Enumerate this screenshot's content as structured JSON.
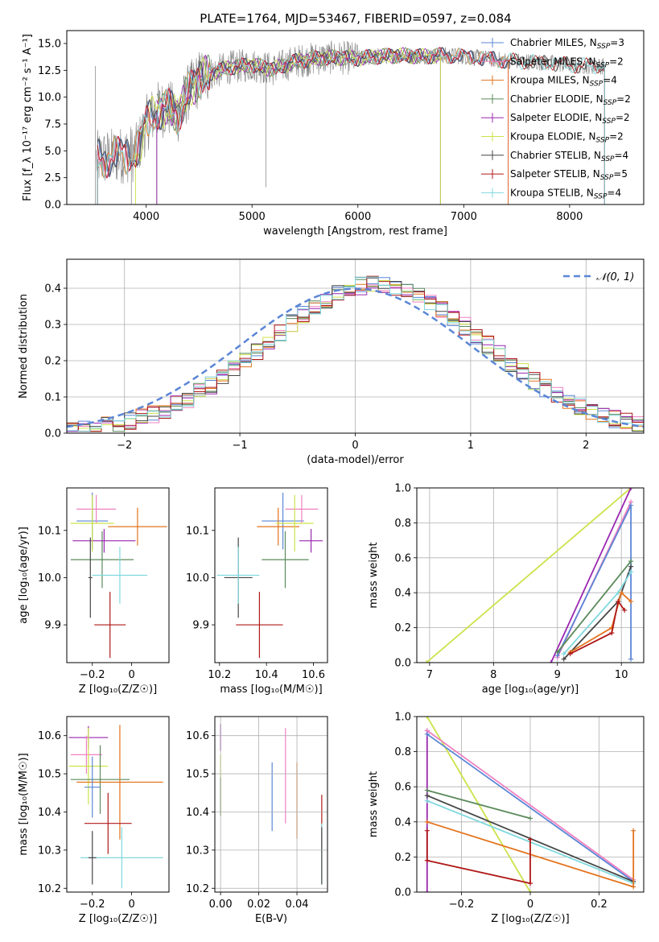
{
  "figure_title": "PLATE=1764, MJD=53467, FIBERID=0597, z=0.084",
  "colors": {
    "Chabrier MILES": "#5b86d6",
    "Salpeter MILES": "#f080c0",
    "Kroupa MILES": "#e3731d",
    "Chabrier ELODIE": "#5a8a5a",
    "Salpeter ELODIE": "#9b27b0",
    "Kroupa ELODIE": "#cde24a",
    "Chabrier STELIB": "#474747",
    "Salpeter STELIB": "#b01818",
    "Kroupa STELIB": "#7fd8de",
    "data": "#808080",
    "normal": "#5b86d6"
  },
  "chart_data": [
    {
      "id": "spectrum",
      "type": "line",
      "xlabel": "wavelength [Angstrom, rest frame]",
      "ylabel": "Flux [f_λ 10⁻¹⁷ erg cm⁻² s⁻¹ A⁻¹]",
      "xlim": [
        3250,
        8700
      ],
      "ylim": [
        0,
        16.2
      ],
      "xticks": [
        4000,
        5000,
        6000,
        7000,
        8000
      ],
      "yticks": [
        0.0,
        2.5,
        5.0,
        7.5,
        10.0,
        12.5,
        15.0
      ],
      "legend": [
        {
          "label": "Chabrier MILES, N_SSP=3",
          "color": "#5b86d6"
        },
        {
          "label": "Salpeter MILES, N_SSP=2",
          "color": "#f080c0"
        },
        {
          "label": "Kroupa MILES, N_SSP=4",
          "color": "#e3731d"
        },
        {
          "label": "Chabrier ELODIE, N_SSP=2",
          "color": "#5a8a5a"
        },
        {
          "label": "Salpeter ELODIE, N_SSP=2",
          "color": "#9b27b0"
        },
        {
          "label": "Kroupa ELODIE, N_SSP=2",
          "color": "#cde24a"
        },
        {
          "label": "Chabrier STELIB, N_SSP=4",
          "color": "#474747"
        },
        {
          "label": "Salpeter STELIB, N_SSP=5",
          "color": "#b01818"
        },
        {
          "label": "Kroupa STELIB, N_SSP=4",
          "color": "#7fd8de"
        }
      ],
      "legend_position": "upper right",
      "grid": false,
      "continuum": [
        [
          3530,
          4.2
        ],
        [
          3700,
          4.5
        ],
        [
          3900,
          4.8
        ],
        [
          3950,
          6.0
        ],
        [
          4000,
          7.5
        ],
        [
          4100,
          8.8
        ],
        [
          4200,
          9.0
        ],
        [
          4300,
          8.4
        ],
        [
          4400,
          10.5
        ],
        [
          4500,
          11.7
        ],
        [
          4600,
          12.2
        ],
        [
          4800,
          12.8
        ],
        [
          5000,
          13.0
        ],
        [
          5200,
          12.6
        ],
        [
          5400,
          13.3
        ],
        [
          5600,
          13.6
        ],
        [
          5800,
          13.7
        ],
        [
          6000,
          13.6
        ],
        [
          6200,
          13.8
        ],
        [
          6400,
          13.9
        ],
        [
          6600,
          13.8
        ],
        [
          6800,
          13.9
        ],
        [
          7000,
          13.8
        ],
        [
          7200,
          13.6
        ],
        [
          7400,
          13.4
        ],
        [
          7600,
          13.3
        ],
        [
          7800,
          13.2
        ],
        [
          8000,
          13.0
        ],
        [
          8200,
          12.9
        ],
        [
          8330,
          12.9
        ]
      ],
      "spikes": [
        {
          "x": 5130,
          "y": 1.6
        },
        {
          "x": 6780,
          "y": 0.0
        },
        {
          "x": 7420,
          "y": 0.0
        },
        {
          "x": 3520,
          "y": 0.0
        },
        {
          "x": 3860,
          "y": 0.0
        }
      ]
    },
    {
      "id": "residuals",
      "type": "histogram",
      "xlabel": "(data-model)/error",
      "ylabel": "Normed distribution",
      "xlim": [
        -2.5,
        2.5
      ],
      "ylim": [
        0,
        0.48
      ],
      "xticks": [
        -2,
        -1,
        0,
        1,
        2
      ],
      "yticks": [
        0.0,
        0.1,
        0.2,
        0.3,
        0.4
      ],
      "grid": true,
      "legend": [
        {
          "label": "𝒩(0, 1)",
          "style": "dashed",
          "color": "#5b86d6"
        }
      ],
      "legend_position": "upper right",
      "bin_width": 0.1
    },
    {
      "id": "age_vs_Z",
      "type": "errorbar",
      "xlabel": "Z [log₁₀(Z/Z☉)]",
      "ylabel": "age  [log₁₀(age/yr)]",
      "xlim": [
        -0.33,
        0.19
      ],
      "ylim": [
        9.82,
        10.19
      ],
      "xticks": [
        -0.2,
        0.0
      ],
      "yticks": [
        9.9,
        10.0,
        10.1
      ],
      "grid": false,
      "points": [
        {
          "model": "Chabrier MILES",
          "x": -0.2,
          "xerr": 0.08,
          "y": 10.12,
          "yerr": 0.06
        },
        {
          "model": "Salpeter MILES",
          "x": -0.18,
          "xerr": 0.1,
          "y": 10.145,
          "yerr": 0.03
        },
        {
          "model": "Kroupa MILES",
          "x": 0.03,
          "xerr": 0.15,
          "y": 10.108,
          "yerr": 0.04
        },
        {
          "model": "Chabrier ELODIE",
          "x": -0.15,
          "xerr": 0.16,
          "y": 10.038,
          "yerr": 0.06
        },
        {
          "model": "Salpeter ELODIE",
          "x": -0.14,
          "xerr": 0.16,
          "y": 10.078,
          "yerr": 0.025
        },
        {
          "model": "Kroupa ELODIE",
          "x": -0.2,
          "xerr": 0.11,
          "y": 10.115,
          "yerr": 0.06
        },
        {
          "model": "Chabrier STELIB",
          "x": -0.21,
          "xerr": 0.01,
          "y": 10.0,
          "yerr": 0.085
        },
        {
          "model": "Salpeter STELIB",
          "x": -0.11,
          "xerr": 0.08,
          "y": 9.9,
          "yerr": 0.07
        },
        {
          "model": "Kroupa STELIB",
          "x": -0.06,
          "xerr": 0.14,
          "y": 10.005,
          "yerr": 0.06
        }
      ]
    },
    {
      "id": "age_vs_mass",
      "type": "errorbar",
      "xlabel": "mass [log₁₀(M/M☉)]",
      "ylabel": "",
      "xlim": [
        10.18,
        10.66
      ],
      "ylim": [
        9.82,
        10.19
      ],
      "xticks": [
        10.2,
        10.4,
        10.6
      ],
      "yticks": [
        9.9,
        10.0,
        10.1
      ],
      "grid": false,
      "points": [
        {
          "model": "Chabrier MILES",
          "x": 10.47,
          "xerr": 0.09,
          "y": 10.12,
          "yerr": 0.06
        },
        {
          "model": "Salpeter MILES",
          "x": 10.55,
          "xerr": 0.07,
          "y": 10.145,
          "yerr": 0.03
        },
        {
          "model": "Kroupa MILES",
          "x": 10.45,
          "xerr": 0.09,
          "y": 10.108,
          "yerr": 0.04
        },
        {
          "model": "Chabrier ELODIE",
          "x": 10.48,
          "xerr": 0.1,
          "y": 10.038,
          "yerr": 0.06
        },
        {
          "model": "Salpeter ELODIE",
          "x": 10.59,
          "xerr": 0.05,
          "y": 10.078,
          "yerr": 0.025
        },
        {
          "model": "Kroupa ELODIE",
          "x": 10.52,
          "xerr": 0.08,
          "y": 10.115,
          "yerr": 0.06
        },
        {
          "model": "Chabrier STELIB",
          "x": 10.28,
          "xerr": 0.06,
          "y": 10.0,
          "yerr": 0.085
        },
        {
          "model": "Salpeter STELIB",
          "x": 10.37,
          "xerr": 0.1,
          "y": 9.9,
          "yerr": 0.07
        },
        {
          "model": "Kroupa STELIB",
          "x": 10.28,
          "xerr": 0.09,
          "y": 10.005,
          "yerr": 0.06
        }
      ]
    },
    {
      "id": "weight_vs_age",
      "type": "line",
      "xlabel": "age  [log₁₀(age/yr)]",
      "ylabel": "mass weight",
      "xlim": [
        6.8,
        10.35
      ],
      "ylim": [
        0,
        1.0
      ],
      "xticks": [
        7,
        8,
        9,
        10
      ],
      "yticks": [
        0.0,
        0.2,
        0.4,
        0.6,
        0.8,
        1.0
      ],
      "grid": true,
      "series": [
        {
          "model": "Kroupa ELODIE",
          "points": [
            [
              6.95,
              0.0
            ],
            [
              10.15,
              1.0
            ]
          ]
        },
        {
          "model": "Salpeter ELODIE",
          "points": [
            [
              8.9,
              0.0
            ],
            [
              10.15,
              1.0
            ]
          ]
        },
        {
          "model": "Salpeter MILES",
          "points": [
            [
              9.0,
              0.03
            ],
            [
              10.15,
              0.92
            ]
          ]
        },
        {
          "model": "Chabrier MILES",
          "points": [
            [
              9.0,
              0.04
            ],
            [
              10.15,
              0.9
            ],
            [
              10.15,
              0.02
            ]
          ]
        },
        {
          "model": "Chabrier ELODIE",
          "points": [
            [
              9.0,
              0.06
            ],
            [
              10.15,
              0.58
            ]
          ]
        },
        {
          "model": "Chabrier STELIB",
          "points": [
            [
              9.1,
              0.02
            ],
            [
              9.95,
              0.35
            ],
            [
              10.15,
              0.55
            ]
          ]
        },
        {
          "model": "Kroupa STELIB",
          "points": [
            [
              9.1,
              0.05
            ],
            [
              9.95,
              0.4
            ],
            [
              10.15,
              0.52
            ]
          ]
        },
        {
          "model": "Kroupa MILES",
          "points": [
            [
              9.2,
              0.06
            ],
            [
              9.85,
              0.2
            ],
            [
              10.0,
              0.4
            ],
            [
              10.15,
              0.35
            ]
          ]
        },
        {
          "model": "Salpeter STELIB",
          "points": [
            [
              9.2,
              0.05
            ],
            [
              9.85,
              0.17
            ],
            [
              9.95,
              0.35
            ],
            [
              10.05,
              0.3
            ]
          ]
        }
      ]
    },
    {
      "id": "mass_vs_Z",
      "type": "errorbar",
      "xlabel": "Z [log₁₀(Z/Z☉)]",
      "ylabel": "mass [log₁₀(M/M☉)]",
      "xlim": [
        -0.33,
        0.19
      ],
      "ylim": [
        10.19,
        10.65
      ],
      "xticks": [
        -0.2,
        0.0
      ],
      "yticks": [
        10.2,
        10.3,
        10.4,
        10.5,
        10.6
      ],
      "grid": false,
      "points": [
        {
          "model": "Salpeter ELODIE",
          "x": -0.22,
          "xerr": 0.1,
          "y": 10.595,
          "yerr": 0.03
        },
        {
          "model": "Salpeter MILES",
          "x": -0.23,
          "xerr": 0.08,
          "y": 10.55,
          "yerr": 0.05
        },
        {
          "model": "Kroupa ELODIE",
          "x": -0.22,
          "xerr": 0.1,
          "y": 10.52,
          "yerr": 0.1
        },
        {
          "model": "Chabrier ELODIE",
          "x": -0.16,
          "xerr": 0.15,
          "y": 10.485,
          "yerr": 0.09
        },
        {
          "model": "Kroupa MILES",
          "x": -0.06,
          "xerr": 0.22,
          "y": 10.478,
          "yerr": 0.15
        },
        {
          "model": "Chabrier MILES",
          "x": -0.2,
          "xerr": 0.04,
          "y": 10.465,
          "yerr": 0.08
        },
        {
          "model": "Salpeter STELIB",
          "x": -0.12,
          "xerr": 0.12,
          "y": 10.37,
          "yerr": 0.08
        },
        {
          "model": "Kroupa STELIB",
          "x": -0.05,
          "xerr": 0.21,
          "y": 10.28,
          "yerr": 0.08
        },
        {
          "model": "Chabrier STELIB",
          "x": -0.2,
          "xerr": 0.02,
          "y": 10.28,
          "yerr": 0.07
        }
      ]
    },
    {
      "id": "mass_vs_ebv",
      "type": "errorbar",
      "xlabel": "E(B-V)",
      "ylabel": "",
      "xlim": [
        -0.003,
        0.056
      ],
      "ylim": [
        10.19,
        10.65
      ],
      "xticks": [
        0.0,
        0.02,
        0.04
      ],
      "xtick_labels": [
        "0.00",
        "0.02",
        "0.04"
      ],
      "yticks": [
        10.2,
        10.3,
        10.4,
        10.5,
        10.6
      ],
      "grid": false,
      "points": [
        {
          "model": "Salpeter ELODIE",
          "x": 0.0,
          "y": 10.595,
          "yerr": 0.035
        },
        {
          "model": "Kroupa ELODIE",
          "x": 0.0,
          "y": 10.47,
          "yerr": 0.08
        },
        {
          "model": "Chabrier ELODIE",
          "x": 0.0,
          "y": 10.44,
          "yerr": 0.05
        },
        {
          "model": "Chabrier MILES",
          "x": 0.027,
          "y": 10.44,
          "yerr": 0.09
        },
        {
          "model": "Salpeter MILES",
          "x": 0.034,
          "y": 10.495,
          "yerr": 0.125
        },
        {
          "model": "Kroupa MILES",
          "x": 0.04,
          "y": 10.43,
          "yerr": 0.1
        },
        {
          "model": "Salpeter STELIB",
          "x": 0.053,
          "y": 10.37,
          "yerr": 0.075
        },
        {
          "model": "Kroupa STELIB",
          "x": 0.053,
          "y": 10.29,
          "yerr": 0.08
        },
        {
          "model": "Chabrier STELIB",
          "x": 0.053,
          "y": 10.285,
          "yerr": 0.075
        }
      ]
    },
    {
      "id": "weight_vs_Z",
      "type": "line",
      "xlabel": "Z [log₁₀(Z/Z☉)]",
      "ylabel": "mass weight",
      "xlim": [
        -0.33,
        0.33
      ],
      "ylim": [
        0,
        1.0
      ],
      "xticks": [
        -0.2,
        0.0,
        0.2
      ],
      "yticks": [
        0.0,
        0.2,
        0.4,
        0.6,
        0.8,
        1.0
      ],
      "grid": true,
      "series": [
        {
          "model": "Kroupa ELODIE",
          "points": [
            [
              -0.3,
              1.0
            ],
            [
              0.0,
              0.0
            ]
          ]
        },
        {
          "model": "Salpeter ELODIE",
          "points": [
            [
              -0.3,
              0.92
            ],
            [
              -0.3,
              0.0
            ]
          ]
        },
        {
          "model": "Salpeter MILES",
          "points": [
            [
              -0.3,
              0.92
            ],
            [
              0.3,
              0.07
            ]
          ]
        },
        {
          "model": "Chabrier MILES",
          "points": [
            [
              -0.3,
              0.9
            ],
            [
              0.3,
              0.06
            ]
          ]
        },
        {
          "model": "Chabrier ELODIE",
          "points": [
            [
              -0.3,
              0.58
            ],
            [
              0.0,
              0.42
            ]
          ]
        },
        {
          "model": "Chabrier STELIB",
          "points": [
            [
              -0.3,
              0.55
            ],
            [
              0.3,
              0.06
            ]
          ]
        },
        {
          "model": "Kroupa STELIB",
          "points": [
            [
              -0.3,
              0.52
            ],
            [
              0.3,
              0.05
            ]
          ]
        },
        {
          "model": "Kroupa MILES",
          "points": [
            [
              -0.3,
              0.4
            ],
            [
              0.3,
              0.03
            ],
            [
              0.3,
              0.35
            ]
          ]
        },
        {
          "model": "Salpeter STELIB",
          "points": [
            [
              -0.3,
              0.35
            ],
            [
              -0.3,
              0.18
            ],
            [
              0.0,
              0.05
            ],
            [
              0.0,
              0.3
            ]
          ]
        }
      ]
    }
  ]
}
